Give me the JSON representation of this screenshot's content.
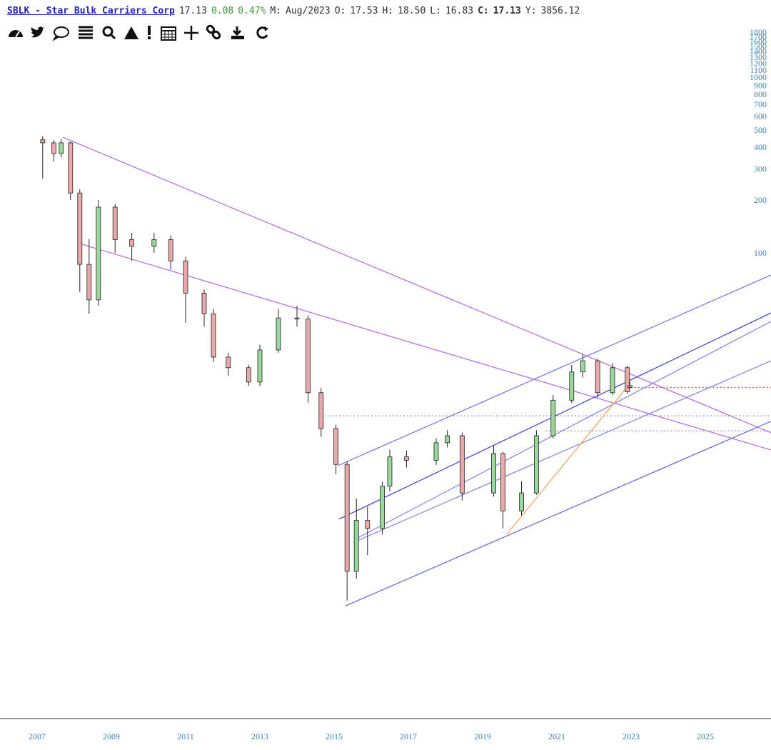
{
  "header": {
    "symbol": "SBLK - Star Bulk Carriers Corp",
    "last": "17.13",
    "change": "0.08",
    "change_pct": "0.47%",
    "period_label": "M:",
    "period": "Aug/2023",
    "open_label": "O:",
    "open": "17.53",
    "high_label": "H:",
    "high": "18.50",
    "low_label": "L:",
    "low": "16.83",
    "close_label": "C:",
    "close": "17.13",
    "y_label": "Y:",
    "y": "3856.12"
  },
  "chart_data": {
    "type": "candlestick",
    "log_scale": true,
    "x": [
      2007.15,
      2007.45,
      2007.65,
      2007.9,
      2008.15,
      2008.4,
      2008.65,
      2009.1,
      2009.55,
      2010.15,
      2010.6,
      2011.0,
      2011.5,
      2011.75,
      2012.15,
      2012.7,
      2013.0,
      2013.5,
      2014.0,
      2014.3,
      2014.65,
      2015.05,
      2015.35,
      2015.6,
      2015.9,
      2016.3,
      2016.5,
      2016.95,
      2017.75,
      2018.05,
      2018.45,
      2019.3,
      2019.55,
      2020.05,
      2020.45,
      2020.9,
      2021.4,
      2021.7,
      2022.1,
      2022.5,
      2022.9,
      2022.97
    ],
    "open": [
      440,
      423,
      368,
      423,
      219,
      86,
      54,
      182,
      119,
      109,
      119,
      90,
      59,
      45,
      25.5,
      22.2,
      18.4,
      28,
      42.6,
      42,
      16,
      10,
      6.25,
      1.54,
      3.0,
      2.7,
      4.7,
      6.9,
      6.6,
      8.3,
      9.1,
      4.3,
      7.2,
      3.4,
      4.3,
      9.1,
      14.5,
      21,
      24.3,
      16,
      22.2,
      17.53
    ],
    "high": [
      460,
      440,
      445,
      430,
      230,
      120,
      200,
      190,
      130,
      130,
      125,
      95,
      62,
      48,
      27,
      23,
      30,
      48,
      50,
      44,
      17,
      10.5,
      6.5,
      4.0,
      3.6,
      5.0,
      7.6,
      7.5,
      8.8,
      9.8,
      9.5,
      8.0,
      7.4,
      5.0,
      9.8,
      15.5,
      23,
      26.5,
      25,
      23.5,
      22.8,
      18.5
    ],
    "low": [
      265,
      330,
      350,
      200,
      60,
      45,
      50,
      100,
      90,
      100,
      80,
      40,
      38,
      24,
      20,
      17.5,
      17.5,
      27,
      38,
      14,
      9,
      5.5,
      1.05,
      1.4,
      1.9,
      2.5,
      4.4,
      6.0,
      6.2,
      7.8,
      3.9,
      4.1,
      2.7,
      3.2,
      4.2,
      8.8,
      14,
      19.5,
      15,
      15.5,
      15.8,
      16.83
    ],
    "close": [
      423,
      368,
      423,
      219,
      86,
      54,
      182,
      119,
      109,
      119,
      90,
      59,
      45,
      25.5,
      22.2,
      18.4,
      28,
      42.6,
      42,
      16,
      10,
      6.25,
      1.54,
      3.0,
      2.7,
      4.7,
      6.9,
      6.6,
      8.3,
      9.1,
      4.3,
      7.2,
      3.4,
      4.3,
      9.1,
      14.5,
      21,
      24.3,
      16,
      22.2,
      16.2,
      17.13
    ],
    "up_color": "#9bd89b",
    "down_color": "#e9a9a9",
    "xlim": [
      2006,
      2026.77
    ],
    "xticks": [
      2007,
      2009,
      2011,
      2013,
      2015,
      2017,
      2019,
      2021,
      2023,
      2025
    ],
    "ylim": [
      0.2257,
      1890
    ],
    "yticks": [
      100,
      200,
      300,
      400,
      500,
      600,
      700,
      800,
      900,
      1000,
      1100,
      1200,
      1300,
      1400,
      1500,
      1600,
      1700,
      1800
    ],
    "trendlines": [
      {
        "from": [
          2007.69,
          455
        ],
        "to": [
          2026.77,
          9.46
        ],
        "color": "#b872e6"
      },
      {
        "from": [
          2008.08,
          114
        ],
        "to": [
          2026.77,
          7.55
        ],
        "color": "#b872e6"
      },
      {
        "from": [
          2015.1,
          6.15
        ],
        "to": [
          2026.77,
          74.8
        ],
        "color": "#7a7af0"
      },
      {
        "from": [
          2015.13,
          3.05
        ],
        "to": [
          2026.77,
          45.5
        ],
        "color": "#4a4ae0"
      },
      {
        "from": [
          2015.56,
          2.34
        ],
        "to": [
          2026.77,
          40.7
        ],
        "color": "#8a8af0"
      },
      {
        "from": [
          2015.52,
          2.25
        ],
        "to": [
          2026.77,
          24.3
        ],
        "color": "#8a8af0"
      },
      {
        "from": [
          2015.31,
          0.98
        ],
        "to": [
          2026.77,
          11.0
        ],
        "color": "#6a6ae6"
      },
      {
        "from": [
          2019.65,
          2.5
        ],
        "to": [
          2022.92,
          17.5
        ],
        "color": "#f2a860"
      }
    ],
    "levels": [
      {
        "value": 17.13,
        "x_start": 2022.9,
        "color": "#d9534f"
      },
      {
        "value": 11.8,
        "x_start": 2014.75,
        "color": "#aaaaaa"
      },
      {
        "value": 9.7,
        "x_start": 2020.7,
        "color": "#aaaaaa"
      }
    ]
  }
}
